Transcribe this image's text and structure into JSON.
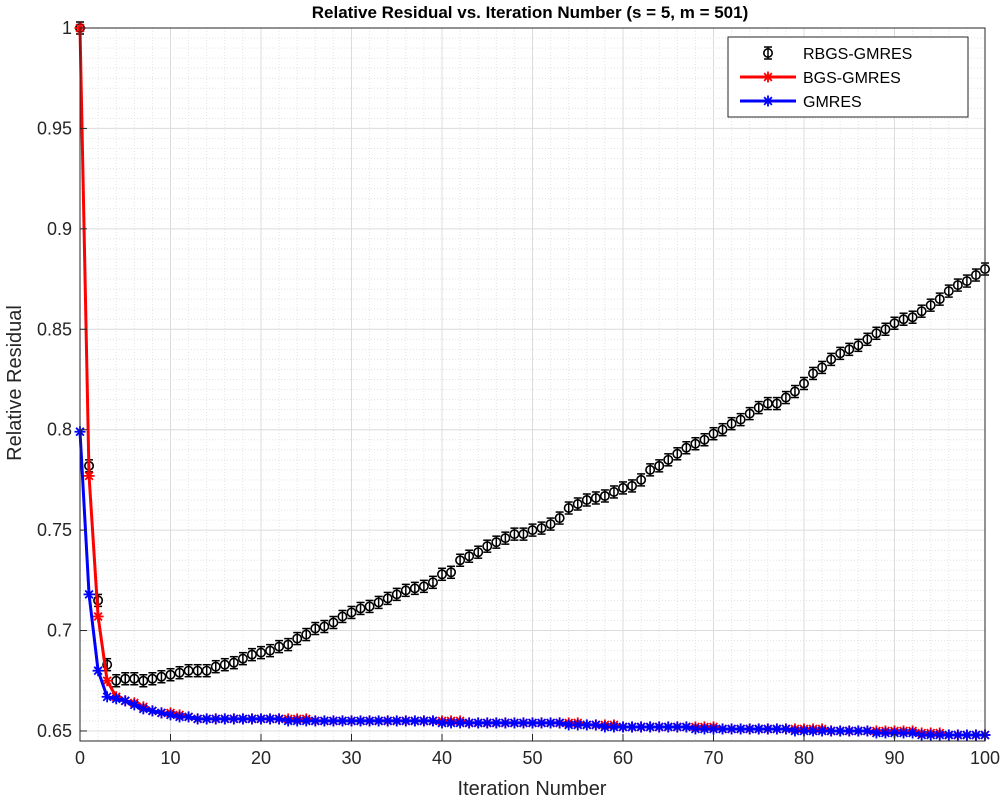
{
  "chart_data": {
    "type": "line",
    "title": "Relative Residual vs. Iteration Number (s = 5, m = 501)",
    "xlabel": "Iteration Number",
    "ylabel": "Relative Residual",
    "xlim": [
      0,
      100
    ],
    "ylim": [
      0.645,
      1.0
    ],
    "grid": true,
    "minor_grid": true,
    "legend_position": "top-right",
    "x_ticks": [
      0,
      10,
      20,
      30,
      40,
      50,
      60,
      70,
      80,
      90,
      100
    ],
    "x_tick_labels": [
      "0",
      "10",
      "20",
      "30",
      "40",
      "50",
      "60",
      "70",
      "80",
      "90",
      "100"
    ],
    "y_ticks": [
      0.65,
      0.7,
      0.75,
      0.8,
      0.85,
      0.9,
      0.95,
      1.0
    ],
    "y_tick_labels": [
      "0.65",
      "0.7",
      "0.75",
      "0.8",
      "0.85",
      "0.9",
      "0.95",
      "1"
    ],
    "x": [
      0,
      1,
      2,
      3,
      4,
      5,
      6,
      7,
      8,
      9,
      10,
      11,
      12,
      13,
      14,
      15,
      16,
      17,
      18,
      19,
      20,
      21,
      22,
      23,
      24,
      25,
      26,
      27,
      28,
      29,
      30,
      31,
      32,
      33,
      34,
      35,
      36,
      37,
      38,
      39,
      40,
      41,
      42,
      43,
      44,
      45,
      46,
      47,
      48,
      49,
      50,
      51,
      52,
      53,
      54,
      55,
      56,
      57,
      58,
      59,
      60,
      61,
      62,
      63,
      64,
      65,
      66,
      67,
      68,
      69,
      70,
      71,
      72,
      73,
      74,
      75,
      76,
      77,
      78,
      79,
      80,
      81,
      82,
      83,
      84,
      85,
      86,
      87,
      88,
      89,
      90,
      91,
      92,
      93,
      94,
      95,
      96,
      97,
      98,
      99,
      100
    ],
    "series": [
      {
        "name": "RBGS-GMRES",
        "color": "#000000",
        "marker": "circle-errorbar",
        "line": false,
        "values": [
          1.0,
          0.782,
          0.715,
          0.683,
          0.675,
          0.676,
          0.676,
          0.675,
          0.676,
          0.677,
          0.678,
          0.679,
          0.68,
          0.68,
          0.68,
          0.682,
          0.683,
          0.684,
          0.686,
          0.688,
          0.689,
          0.69,
          0.692,
          0.693,
          0.696,
          0.698,
          0.701,
          0.702,
          0.704,
          0.707,
          0.709,
          0.711,
          0.712,
          0.714,
          0.716,
          0.718,
          0.72,
          0.721,
          0.722,
          0.724,
          0.728,
          0.729,
          0.735,
          0.737,
          0.739,
          0.742,
          0.744,
          0.746,
          0.748,
          0.748,
          0.75,
          0.751,
          0.753,
          0.756,
          0.761,
          0.763,
          0.765,
          0.766,
          0.767,
          0.769,
          0.771,
          0.772,
          0.775,
          0.78,
          0.782,
          0.785,
          0.788,
          0.791,
          0.793,
          0.795,
          0.798,
          0.8,
          0.803,
          0.805,
          0.808,
          0.811,
          0.813,
          0.813,
          0.816,
          0.819,
          0.823,
          0.828,
          0.831,
          0.835,
          0.838,
          0.84,
          0.842,
          0.845,
          0.848,
          0.85,
          0.853,
          0.855,
          0.856,
          0.859,
          0.862,
          0.865,
          0.869,
          0.872,
          0.874,
          0.877,
          0.88
        ]
      },
      {
        "name": "BGS-GMRES",
        "color": "#ff0000",
        "marker": "asterisk",
        "line": true,
        "values": [
          1.0,
          0.777,
          0.707,
          0.675,
          0.667,
          0.665,
          0.664,
          0.662,
          0.66,
          0.659,
          0.659,
          0.658,
          0.657,
          0.656,
          0.656,
          0.656,
          0.656,
          0.656,
          0.656,
          0.656,
          0.656,
          0.656,
          0.656,
          0.656,
          0.656,
          0.656,
          0.655,
          0.655,
          0.655,
          0.655,
          0.655,
          0.655,
          0.655,
          0.655,
          0.655,
          0.655,
          0.655,
          0.655,
          0.655,
          0.655,
          0.655,
          0.655,
          0.655,
          0.654,
          0.654,
          0.654,
          0.654,
          0.654,
          0.654,
          0.654,
          0.654,
          0.654,
          0.654,
          0.654,
          0.654,
          0.654,
          0.653,
          0.653,
          0.653,
          0.653,
          0.652,
          0.652,
          0.652,
          0.652,
          0.652,
          0.652,
          0.652,
          0.652,
          0.652,
          0.652,
          0.652,
          0.651,
          0.651,
          0.651,
          0.651,
          0.651,
          0.651,
          0.651,
          0.651,
          0.651,
          0.651,
          0.651,
          0.651,
          0.65,
          0.65,
          0.65,
          0.65,
          0.65,
          0.65,
          0.65,
          0.65,
          0.65,
          0.65,
          0.649,
          0.649,
          0.649,
          0.648,
          0.648,
          0.648,
          0.648,
          0.648
        ]
      },
      {
        "name": "GMRES",
        "color": "#0000ff",
        "marker": "asterisk",
        "line": true,
        "values": [
          0.799,
          0.718,
          0.68,
          0.667,
          0.666,
          0.665,
          0.663,
          0.661,
          0.66,
          0.659,
          0.658,
          0.657,
          0.657,
          0.656,
          0.656,
          0.656,
          0.656,
          0.656,
          0.656,
          0.656,
          0.656,
          0.656,
          0.656,
          0.655,
          0.655,
          0.655,
          0.655,
          0.655,
          0.655,
          0.655,
          0.655,
          0.655,
          0.655,
          0.655,
          0.655,
          0.655,
          0.655,
          0.655,
          0.655,
          0.655,
          0.654,
          0.654,
          0.654,
          0.654,
          0.654,
          0.654,
          0.654,
          0.654,
          0.654,
          0.654,
          0.654,
          0.654,
          0.654,
          0.654,
          0.653,
          0.653,
          0.653,
          0.653,
          0.652,
          0.652,
          0.652,
          0.652,
          0.652,
          0.652,
          0.652,
          0.652,
          0.652,
          0.652,
          0.651,
          0.651,
          0.651,
          0.651,
          0.651,
          0.651,
          0.651,
          0.651,
          0.651,
          0.651,
          0.651,
          0.65,
          0.65,
          0.65,
          0.65,
          0.65,
          0.65,
          0.65,
          0.65,
          0.65,
          0.649,
          0.649,
          0.649,
          0.649,
          0.649,
          0.648,
          0.648,
          0.648,
          0.648,
          0.648,
          0.648,
          0.648,
          0.648
        ]
      }
    ]
  }
}
